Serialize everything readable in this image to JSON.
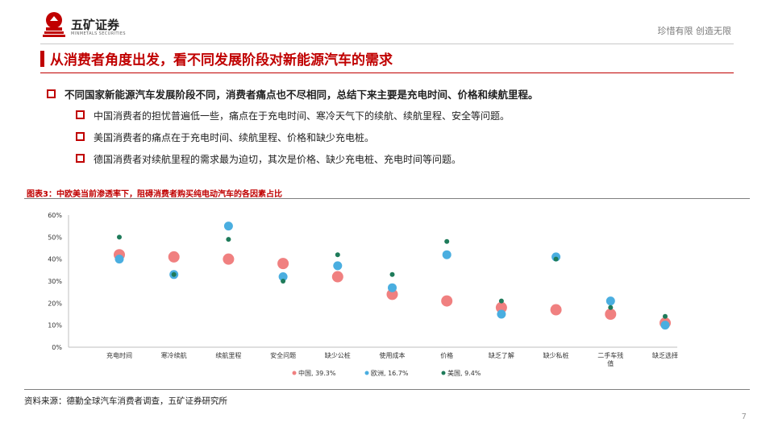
{
  "header": {
    "brand_name": "五矿证券",
    "brand_sub": "MINMETALS SECURITIES",
    "slogan": "珍惜有限 创造无限"
  },
  "title": "从消费者角度出发，看不同发展阶段对新能源汽车的需求",
  "bullets": {
    "main": "不同国家新能源汽车发展阶段不同，消费者痛点也不尽相同，总结下来主要是充电时间、价格和续航里程。",
    "sub": [
      "中国消费者的担忧普遍低一些，痛点在于充电时间、寒冷天气下的续航、续航里程、安全等问题。",
      "美国消费者的痛点在于充电时间、续航里程、价格和缺少充电桩。",
      "德国消费者对续航里程的需求最为迫切，其次是价格、缺少充电桩、充电时间等问题。"
    ]
  },
  "figure_title": "图表3：中欧美当前渗透率下，阻碍消费者购买纯电动汽车的各因素占比",
  "source": "资料来源：德勤全球汽车消费者调查，五矿证券研究所",
  "page_number": "7",
  "colors": {
    "accent": "#c00000",
    "china": "#f08080",
    "europe": "#4aaee0",
    "usa": "#1e7b5a"
  },
  "chart_data": {
    "type": "scatter",
    "categories": [
      "充电时间",
      "寒冷续航",
      "续航里程",
      "安全问题",
      "缺少公桩",
      "使用成本",
      "价格",
      "缺乏了解",
      "缺少私桩",
      "二手车残值",
      "缺乏选择"
    ],
    "y_ticks": [
      "0%",
      "10%",
      "20%",
      "30%",
      "40%",
      "50%",
      "60%"
    ],
    "ylim": [
      0,
      60
    ],
    "series": [
      {
        "name": "中国, 39.3%",
        "color": "#f08080",
        "values": [
          42,
          41,
          40,
          38,
          32,
          24,
          21,
          18,
          17,
          15,
          11
        ]
      },
      {
        "name": "欧洲, 16.7%",
        "color": "#4aaee0",
        "values": [
          40,
          33,
          55,
          32,
          37,
          27,
          42,
          15,
          41,
          21,
          10
        ]
      },
      {
        "name": "美国, 9.4%",
        "color": "#1e7b5a",
        "values": [
          50,
          33,
          49,
          30,
          42,
          33,
          48,
          21,
          40,
          18,
          14
        ]
      }
    ],
    "grid": false,
    "legend_position": "bottom"
  }
}
